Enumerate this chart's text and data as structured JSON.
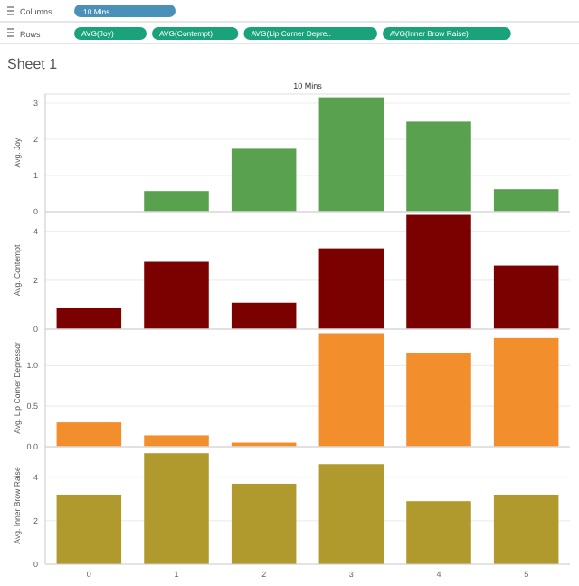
{
  "chart_data": [
    {
      "type": "other",
      "annotations": [
        "Columns",
        "10 Mins",
        "Rows",
        "AVG(Joy)",
        "AVG(Contempt)",
        "AVG(Lip Corner Depre..",
        "AVG(Inner Brow Raise)"
      ]
    },
    {
      "type": "bar",
      "title": "Sheet 1",
      "subtitle": "10 Mins",
      "ylabel": "Avg. Joy",
      "categories": [
        null,
        null,
        null,
        null,
        null,
        null
      ],
      "values": [
        0,
        0.57,
        1.74,
        3.16,
        2.49,
        0.62
      ],
      "color": "#59a14f",
      "ylim": [
        0,
        3.25
      ],
      "yticks": [
        0,
        1,
        2,
        3
      ],
      "grid": "y",
      "tick_labels": "y"
    },
    {
      "type": "bar",
      "ylabel": "Avg. Contempt",
      "categories": [
        null,
        null,
        null,
        null,
        null,
        null
      ],
      "values": [
        0.85,
        2.75,
        1.08,
        3.3,
        4.67,
        2.6
      ],
      "color": "#7b0000",
      "ylim": [
        0,
        4.8
      ],
      "yticks": [
        0,
        2,
        4
      ],
      "grid": "y",
      "tick_labels": "y"
    },
    {
      "type": "bar",
      "ylabel": "Avg. Lip Corner Depressor",
      "categories": [
        null,
        null,
        null,
        null,
        null,
        null
      ],
      "values": [
        0.3,
        0.14,
        0.05,
        1.4,
        1.16,
        1.34
      ],
      "color": "#f28e2b",
      "ylim": [
        0,
        1.45
      ],
      "yticks": [
        {
          "value": 0,
          "label": "0.0"
        },
        {
          "value": 0.5,
          "label": "0.5"
        },
        {
          "value": 1,
          "label": "1.0"
        }
      ],
      "grid": "y",
      "tick_labels": "y"
    },
    {
      "type": "bar",
      "ylabel": "Avg. Inner Brow Raise",
      "categories": [
        "0",
        "1",
        "2",
        "3",
        "4",
        "5"
      ],
      "values": [
        3.2,
        5.1,
        3.7,
        4.6,
        2.9,
        3.2
      ],
      "color": "#b09a2e",
      "ylim": [
        0,
        5.4
      ],
      "yticks": [
        0,
        2,
        4
      ],
      "grid": "y"
    }
  ]
}
